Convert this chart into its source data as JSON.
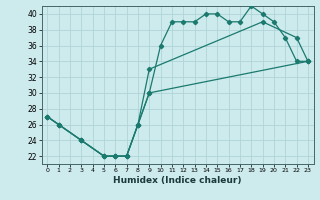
{
  "xlabel": "Humidex (Indice chaleur)",
  "background_color": "#cdeaed",
  "grid_color": "#aed4d8",
  "line_color": "#1a7a6e",
  "xlim": [
    -0.5,
    23.5
  ],
  "ylim": [
    21.0,
    41.0
  ],
  "xticks": [
    0,
    1,
    2,
    3,
    4,
    5,
    6,
    7,
    8,
    9,
    10,
    11,
    12,
    13,
    14,
    15,
    16,
    17,
    18,
    19,
    20,
    21,
    22,
    23
  ],
  "yticks": [
    22,
    24,
    26,
    28,
    30,
    32,
    34,
    36,
    38,
    40
  ],
  "line1_x": [
    0,
    1,
    3,
    5,
    6,
    7,
    8,
    9,
    10,
    11,
    12,
    13,
    14,
    15,
    16,
    17,
    18,
    19,
    20,
    21,
    22,
    23
  ],
  "line1_y": [
    27,
    26,
    24,
    22,
    22,
    22,
    26,
    30,
    36,
    39,
    39,
    39,
    40,
    40,
    39,
    39,
    41,
    40,
    39,
    37,
    34,
    34
  ],
  "line2_x": [
    0,
    1,
    3,
    5,
    6,
    7,
    8,
    9,
    19,
    22,
    23
  ],
  "line2_y": [
    27,
    26,
    24,
    22,
    22,
    22,
    26,
    33,
    39,
    37,
    34
  ],
  "line3_x": [
    0,
    1,
    3,
    5,
    6,
    7,
    8,
    9,
    23
  ],
  "line3_y": [
    27,
    26,
    24,
    22,
    22,
    22,
    26,
    30,
    34
  ]
}
